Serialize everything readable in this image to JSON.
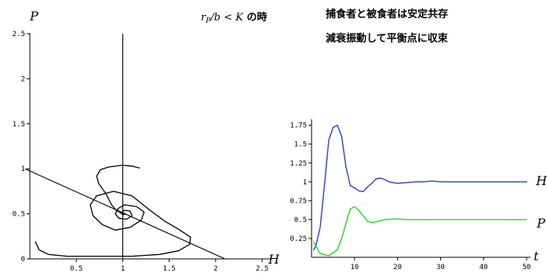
{
  "annotations": {
    "condition_prefix": "r",
    "condition_sub": "P",
    "condition_rest": "/b < K",
    "condition_suffix": " の時",
    "line1": "捕食者と被食者は安定共存",
    "line2": "減衰振動して平衡点に収束"
  },
  "chart_data": [
    {
      "type": "line",
      "xlabel": "H",
      "ylabel": "P",
      "xlim": [
        0,
        2.5
      ],
      "ylim": [
        0,
        2.5
      ],
      "xticks": [
        "0.5",
        "1",
        "1.5",
        "2",
        "2.5"
      ],
      "yticks": [
        "0",
        "0.5",
        "1",
        "1.5",
        "2",
        "2.5"
      ],
      "reference_lines": [
        {
          "kind": "vertical",
          "x": 1.0
        },
        {
          "kind": "line",
          "points": [
            [
              -0.05,
              1.0
            ],
            [
              2.1,
              0.0
            ]
          ]
        }
      ],
      "series": [
        {
          "color": "#000000",
          "points": [
            [
              0.06,
              0.19
            ],
            [
              0.1,
              0.1
            ],
            [
              0.2,
              0.05
            ],
            [
              0.4,
              0.03
            ],
            [
              0.7,
              0.03
            ],
            [
              1.1,
              0.03
            ],
            [
              1.4,
              0.05
            ],
            [
              1.6,
              0.09
            ],
            [
              1.72,
              0.16
            ],
            [
              1.73,
              0.24
            ],
            [
              1.6,
              0.33
            ],
            [
              1.45,
              0.42
            ],
            [
              1.28,
              0.55
            ],
            [
              1.1,
              0.7
            ],
            [
              0.9,
              0.75
            ],
            [
              0.72,
              0.7
            ],
            [
              0.65,
              0.6
            ],
            [
              0.68,
              0.48
            ],
            [
              0.78,
              0.38
            ],
            [
              0.92,
              0.32
            ],
            [
              1.08,
              0.35
            ],
            [
              1.2,
              0.43
            ],
            [
              1.23,
              0.52
            ],
            [
              1.15,
              0.58
            ],
            [
              1.02,
              0.6
            ],
            [
              0.95,
              0.56
            ],
            [
              0.92,
              0.5
            ],
            [
              0.96,
              0.45
            ],
            [
              1.04,
              0.44
            ],
            [
              1.1,
              0.48
            ],
            [
              1.08,
              0.53
            ],
            [
              1.02,
              0.54
            ],
            [
              0.98,
              0.51
            ],
            [
              1.0,
              0.49
            ],
            [
              1.03,
              0.5
            ],
            [
              1.01,
              0.51
            ],
            [
              1.0,
              0.5
            ]
          ]
        },
        {
          "color": "#000000",
          "points": [
            [
              1.0,
              0.5
            ],
            [
              0.93,
              0.54
            ],
            [
              0.88,
              0.6
            ],
            [
              0.82,
              0.72
            ],
            [
              0.74,
              0.84
            ],
            [
              0.72,
              0.92
            ],
            [
              0.76,
              0.99
            ],
            [
              0.85,
              1.02
            ],
            [
              1.0,
              1.04
            ],
            [
              1.1,
              1.03
            ],
            [
              1.18,
              1.01
            ]
          ]
        }
      ]
    },
    {
      "type": "line",
      "xlabel": "t",
      "xlim": [
        0,
        51
      ],
      "ylim": [
        0,
        1.8
      ],
      "xticks": [
        "10",
        "20",
        "30",
        "40",
        "50"
      ],
      "yticks": [
        "0.25",
        "0.5",
        "0.75",
        "1",
        "1.25",
        "1.5",
        "1.75"
      ],
      "series": [
        {
          "name": "H",
          "color": "#2a3fd6",
          "points": [
            [
              0.5,
              0.1
            ],
            [
              1,
              0.15
            ],
            [
              2,
              0.4
            ],
            [
              3,
              0.95
            ],
            [
              4,
              1.55
            ],
            [
              5,
              1.72
            ],
            [
              6,
              1.75
            ],
            [
              7,
              1.6
            ],
            [
              8,
              1.2
            ],
            [
              9,
              0.95
            ],
            [
              10,
              0.92
            ],
            [
              11,
              0.88
            ],
            [
              12,
              0.87
            ],
            [
              13,
              0.93
            ],
            [
              14,
              0.98
            ],
            [
              15,
              1.04
            ],
            [
              16,
              1.05
            ],
            [
              17,
              1.03
            ],
            [
              18,
              1.0
            ],
            [
              20,
              0.98
            ],
            [
              22,
              0.99
            ],
            [
              24,
              1.0
            ],
            [
              26,
              1.0
            ],
            [
              28,
              1.01
            ],
            [
              30,
              1.0
            ],
            [
              35,
              1.0
            ],
            [
              40,
              1.0
            ],
            [
              45,
              1.0
            ],
            [
              50,
              1.0
            ]
          ]
        },
        {
          "name": "P",
          "color": "#22d822",
          "points": [
            [
              0.5,
              0.2
            ],
            [
              2,
              0.05
            ],
            [
              4,
              0.02
            ],
            [
              6,
              0.1
            ],
            [
              7,
              0.25
            ],
            [
              8,
              0.45
            ],
            [
              9,
              0.64
            ],
            [
              10,
              0.67
            ],
            [
              11,
              0.62
            ],
            [
              12,
              0.55
            ],
            [
              13,
              0.48
            ],
            [
              14,
              0.46
            ],
            [
              15,
              0.47
            ],
            [
              17,
              0.5
            ],
            [
              20,
              0.51
            ],
            [
              22,
              0.5
            ],
            [
              25,
              0.5
            ],
            [
              30,
              0.5
            ],
            [
              40,
              0.5
            ],
            [
              50,
              0.5
            ]
          ]
        }
      ]
    }
  ]
}
